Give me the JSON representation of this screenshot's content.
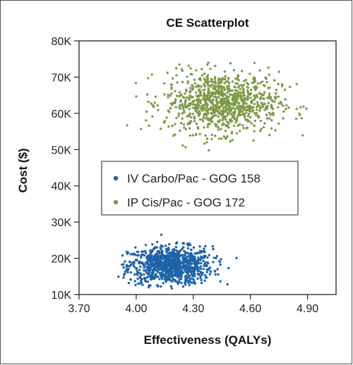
{
  "chart_data": {
    "type": "scatter",
    "title": "CE Scatterplot",
    "xlabel": "Effectiveness (QALYs)",
    "ylabel": "Cost ($)",
    "xlim": [
      3.7,
      5.05
    ],
    "ylim": [
      10000,
      80000
    ],
    "x_ticks": [
      3.7,
      4.0,
      4.3,
      4.6,
      4.9
    ],
    "x_tick_labels": [
      "3.70",
      "4.00",
      "4.30",
      "4.60",
      "4.90"
    ],
    "y_ticks": [
      10000,
      20000,
      30000,
      40000,
      50000,
      60000,
      70000,
      80000
    ],
    "y_tick_labels": [
      "10K",
      "20K",
      "30K",
      "40K",
      "50K",
      "60K",
      "70K",
      "80K"
    ],
    "grid": false,
    "legend_placement": "center-left",
    "series": [
      {
        "name": "IV Carbo/Pac - GOG 158",
        "color": "#1f63a8",
        "x_range": [
          3.9,
          4.6
        ],
        "y_range": [
          11500,
          27000
        ],
        "x_mean": 4.18,
        "y_mean": 18000
      },
      {
        "name": "IP Cis/Pac - GOG 172",
        "color": "#7d9a48",
        "x_range": [
          3.95,
          4.92
        ],
        "y_range": [
          49000,
          74000
        ],
        "x_mean": 4.45,
        "y_mean": 63000
      }
    ]
  }
}
